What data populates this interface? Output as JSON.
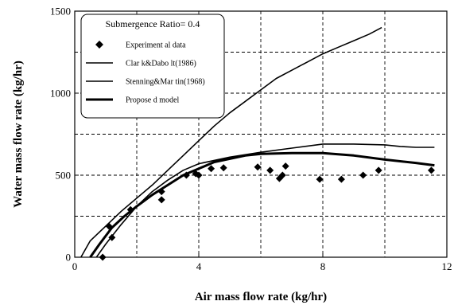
{
  "chart_data": {
    "type": "line",
    "xlabel": "Air mass flow rate (kg/hr)",
    "ylabel": "Water mass flow rate (kg/hr)",
    "xlim": [
      0,
      12
    ],
    "ylim": [
      0,
      1500
    ],
    "xticks": [
      0,
      4,
      8,
      12
    ],
    "yticks": [
      0,
      500,
      1000,
      1500
    ],
    "x_grid_dashed": [
      2,
      4,
      6,
      8,
      10
    ],
    "y_grid_dashed": [
      250,
      500,
      750,
      1000,
      1250
    ],
    "grid": true,
    "legend": {
      "placement": "top-left",
      "title": "Submergence Ratio= 0.4"
    },
    "series": [
      {
        "name": "Experiment al data",
        "kind": "scatter",
        "marker": "diamond",
        "points": [
          [
            0.9,
            0
          ],
          [
            1.1,
            190
          ],
          [
            1.2,
            120
          ],
          [
            1.8,
            290
          ],
          [
            2.8,
            350
          ],
          [
            2.8,
            400
          ],
          [
            3.6,
            500
          ],
          [
            3.9,
            510
          ],
          [
            4.0,
            500
          ],
          [
            4.4,
            540
          ],
          [
            4.8,
            545
          ],
          [
            5.9,
            550
          ],
          [
            6.3,
            530
          ],
          [
            6.6,
            480
          ],
          [
            6.7,
            500
          ],
          [
            6.8,
            555
          ],
          [
            7.9,
            475
          ],
          [
            8.6,
            475
          ],
          [
            9.3,
            500
          ],
          [
            9.8,
            530
          ],
          [
            11.5,
            530
          ]
        ]
      },
      {
        "name": "Clar k&Dabo lt(1986)",
        "kind": "line",
        "stroke_width": 1.6,
        "points": [
          [
            0.2,
            0
          ],
          [
            0.5,
            100
          ],
          [
            1.0,
            190
          ],
          [
            1.5,
            280
          ],
          [
            2.0,
            360
          ],
          [
            2.5,
            440
          ],
          [
            3.0,
            530
          ],
          [
            3.5,
            620
          ],
          [
            4.0,
            710
          ],
          [
            4.5,
            800
          ],
          [
            5.0,
            880
          ],
          [
            5.5,
            950
          ],
          [
            6.0,
            1020
          ],
          [
            6.5,
            1090
          ],
          [
            7.0,
            1140
          ],
          [
            7.5,
            1190
          ],
          [
            8.0,
            1240
          ],
          [
            8.5,
            1280
          ],
          [
            9.0,
            1320
          ],
          [
            9.5,
            1360
          ],
          [
            9.9,
            1400
          ]
        ]
      },
      {
        "name": "Stenning&Mar tin(1968)",
        "kind": "line",
        "stroke_width": 1.6,
        "points": [
          [
            0.7,
            0
          ],
          [
            1.0,
            80
          ],
          [
            1.5,
            200
          ],
          [
            2.0,
            310
          ],
          [
            2.5,
            400
          ],
          [
            3.0,
            470
          ],
          [
            3.5,
            530
          ],
          [
            4.0,
            570
          ],
          [
            5.0,
            610
          ],
          [
            6.0,
            640
          ],
          [
            7.0,
            665
          ],
          [
            8.0,
            690
          ],
          [
            9.0,
            690
          ],
          [
            10.0,
            685
          ],
          [
            10.5,
            675
          ],
          [
            11.0,
            670
          ],
          [
            11.6,
            670
          ]
        ]
      },
      {
        "name": "Propose d model",
        "kind": "line",
        "stroke_width": 3,
        "points": [
          [
            0.5,
            0
          ],
          [
            0.8,
            80
          ],
          [
            1.2,
            180
          ],
          [
            1.6,
            250
          ],
          [
            2.0,
            310
          ],
          [
            2.5,
            380
          ],
          [
            3.0,
            440
          ],
          [
            3.5,
            500
          ],
          [
            4.0,
            540
          ],
          [
            4.5,
            580
          ],
          [
            5.0,
            600
          ],
          [
            5.5,
            620
          ],
          [
            6.0,
            630
          ],
          [
            7.0,
            635
          ],
          [
            8.0,
            635
          ],
          [
            9.0,
            620
          ],
          [
            10.0,
            595
          ],
          [
            11.0,
            575
          ],
          [
            11.6,
            560
          ]
        ]
      }
    ]
  }
}
